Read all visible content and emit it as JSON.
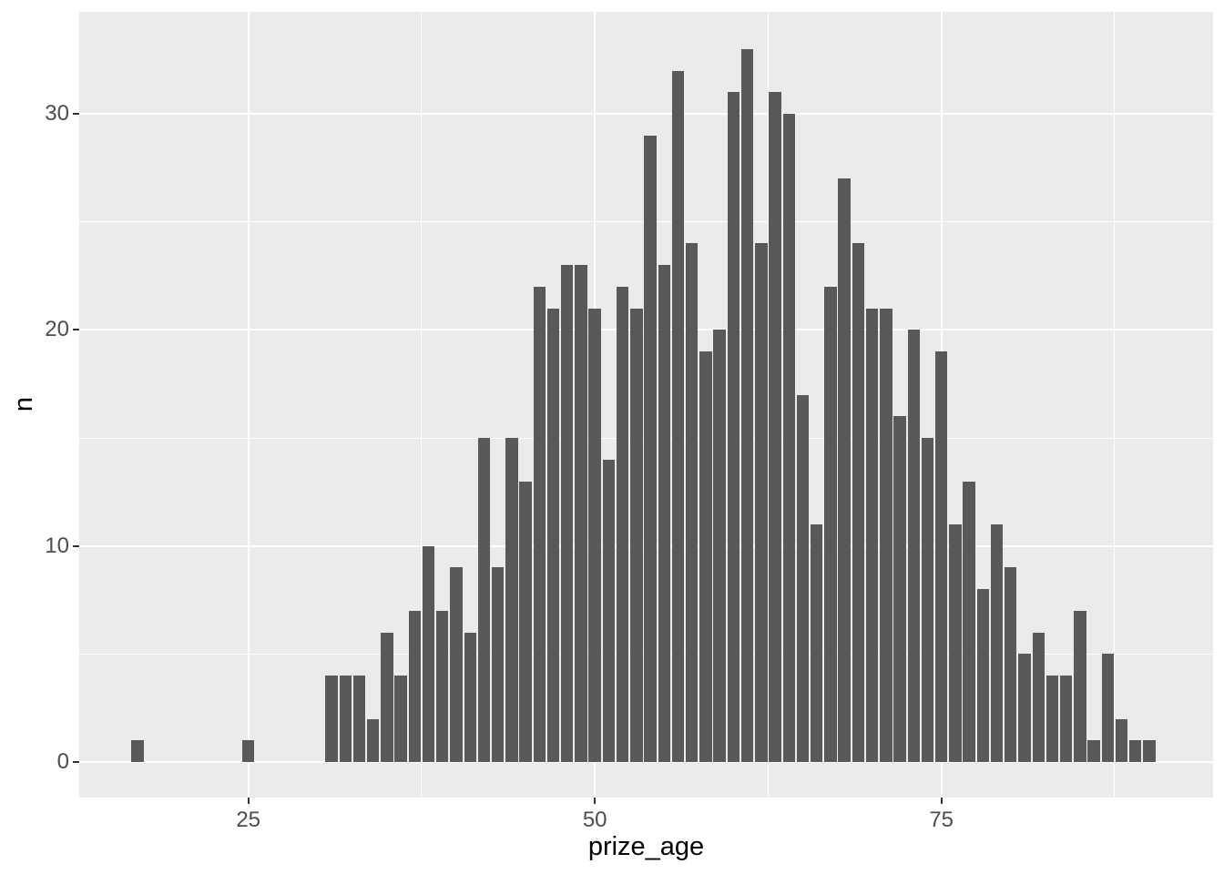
{
  "figure": {
    "kind": "ggplot-histogram"
  },
  "chart_data": {
    "type": "bar",
    "variant": "histogram",
    "title": "",
    "xlabel": "prize_age",
    "ylabel": "n",
    "bin_width": 1,
    "x": [
      17,
      25,
      31,
      32,
      33,
      34,
      35,
      36,
      37,
      38,
      39,
      40,
      41,
      42,
      43,
      44,
      45,
      46,
      47,
      48,
      49,
      50,
      51,
      52,
      53,
      54,
      55,
      56,
      57,
      58,
      59,
      60,
      61,
      62,
      63,
      64,
      65,
      66,
      67,
      68,
      69,
      70,
      71,
      72,
      73,
      74,
      75,
      76,
      77,
      78,
      79,
      80,
      81,
      82,
      83,
      84,
      85,
      86,
      87,
      88,
      89,
      90
    ],
    "values": [
      1,
      1,
      4,
      4,
      4,
      2,
      6,
      4,
      7,
      10,
      7,
      9,
      6,
      15,
      9,
      15,
      13,
      22,
      21,
      23,
      23,
      21,
      14,
      22,
      21,
      29,
      23,
      32,
      24,
      19,
      20,
      31,
      33,
      24,
      31,
      30,
      17,
      11,
      22,
      27,
      24,
      21,
      21,
      16,
      20,
      15,
      19,
      11,
      13,
      8,
      11,
      9,
      5,
      6,
      4,
      4,
      7,
      1,
      5,
      2,
      1,
      1
    ],
    "x_domain": [
      12.8,
      94.6
    ],
    "y_domain": [
      -1.64,
      34.72
    ],
    "x_ticks_major": [
      25,
      50,
      75
    ],
    "x_ticks_minor": [
      37.5,
      62.5,
      87.5
    ],
    "y_ticks_major": [
      0,
      10,
      20,
      30
    ],
    "y_ticks_minor": [
      5,
      15,
      25
    ],
    "grid": "on",
    "legend": "none",
    "colors": {
      "bar": "#595959",
      "panel_background": "#EBEBEB",
      "gridline": "#FFFFFF",
      "tick_label": "#4D4D4D",
      "axis_title": "#000000",
      "tick_mark": "#333333",
      "figure_background": "#FFFFFF"
    }
  }
}
